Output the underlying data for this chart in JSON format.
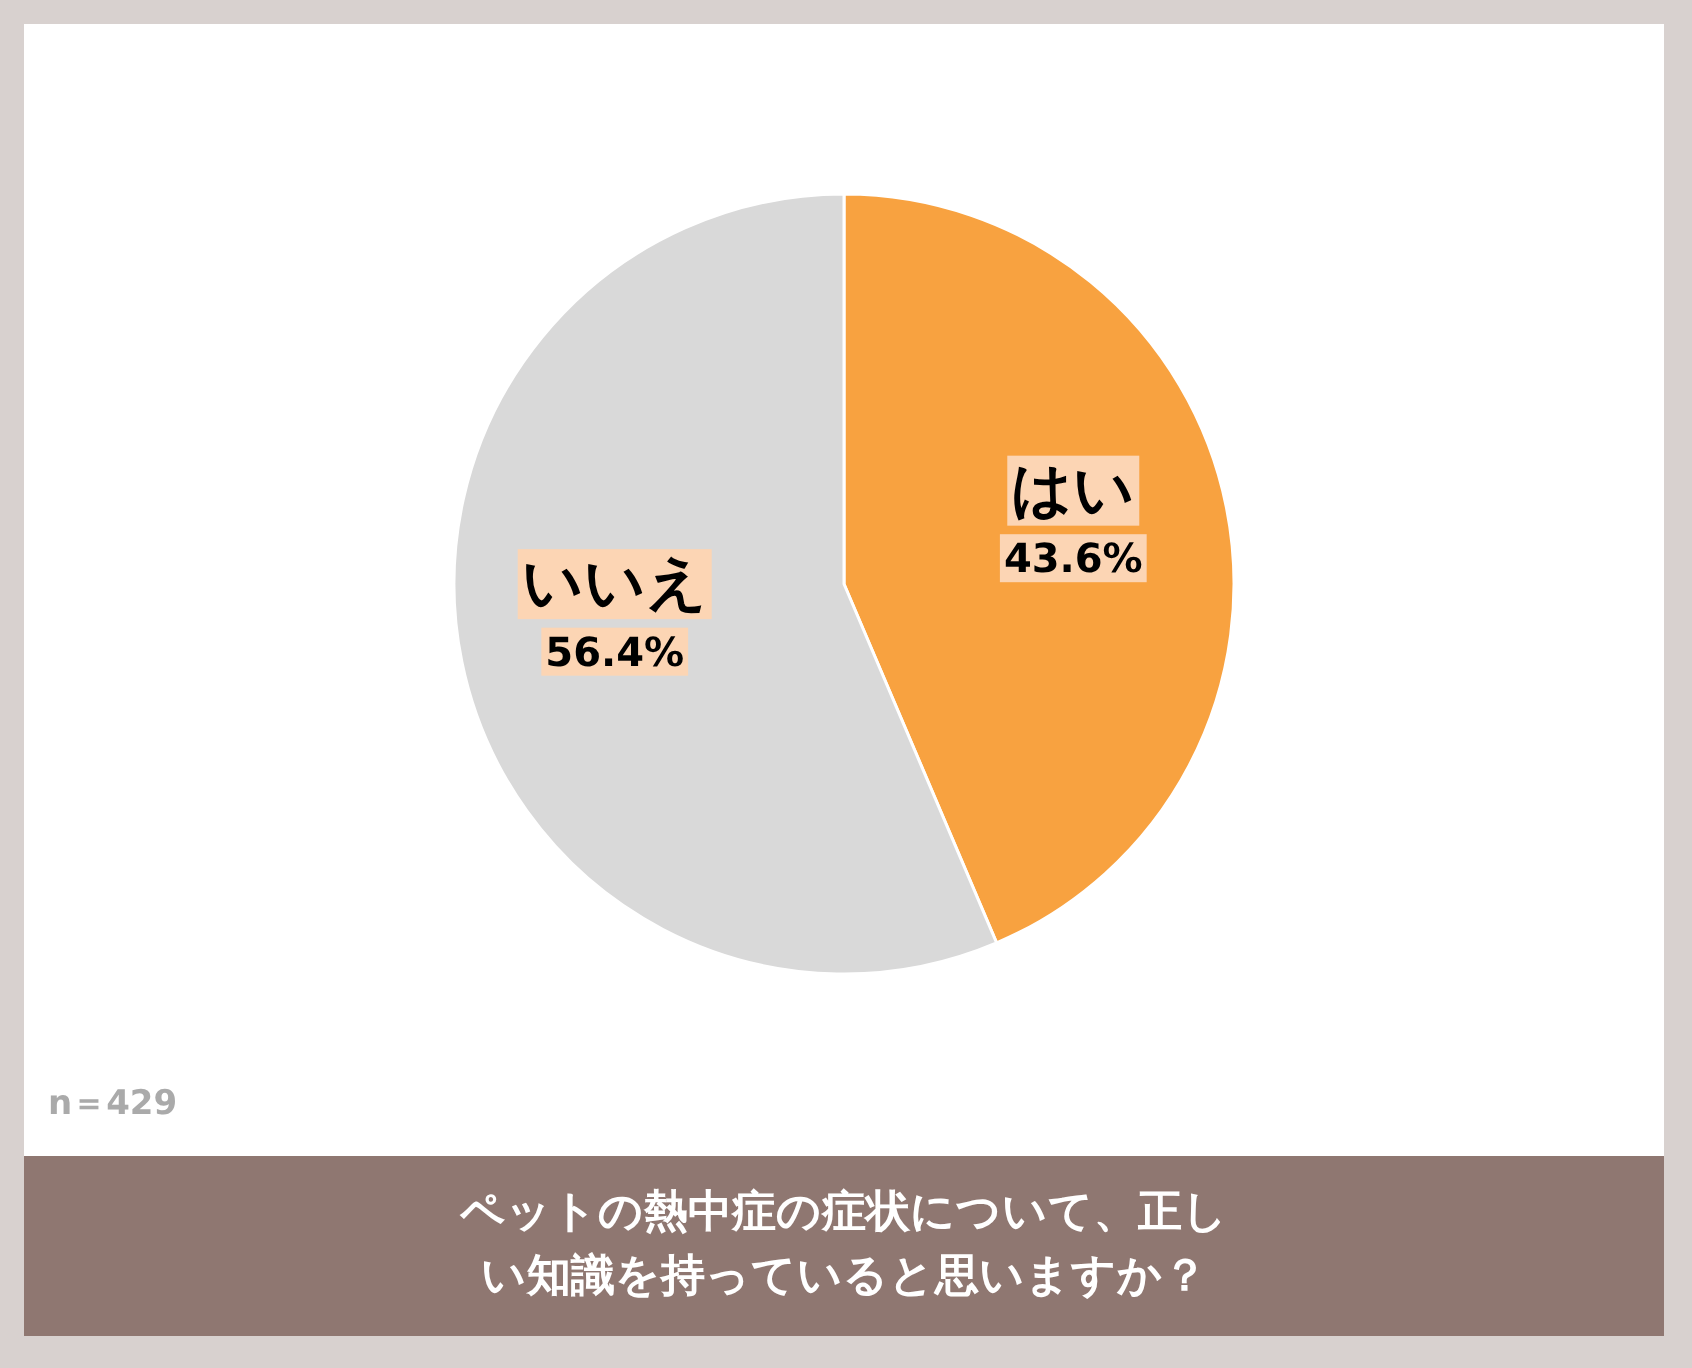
{
  "chart_data": {
    "type": "pie",
    "title": "ペットの熱中症の症状について、正しい知識を持っていると思いますか？",
    "categories": [
      "はい",
      "いいえ"
    ],
    "values": [
      43.6,
      56.4
    ],
    "colors": [
      "#f8a240",
      "#d9d9d9"
    ],
    "value_labels": [
      "43.6%",
      "56.4%"
    ],
    "annotations": [
      "n＝429"
    ]
  }
}
